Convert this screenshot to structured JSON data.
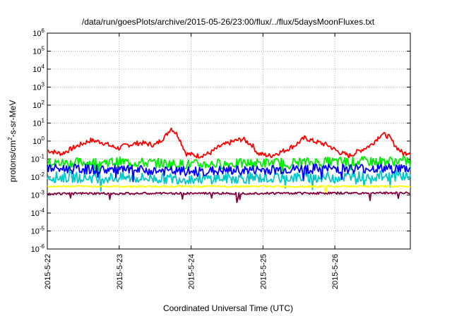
{
  "chart_data": {
    "type": "line",
    "title": "/data/run/goesPlots/archive/2015-05-26/23:00/flux/../flux/5daysMoonFluxes.txt",
    "xlabel": "Coordinated Universal Time (UTC)",
    "ylabel": {
      "pre": "protons/cm",
      "sup": "2",
      "post": "-s-sr-MeV"
    },
    "yscale": "log",
    "ylim": [
      1e-06,
      1000000.0
    ],
    "yticks": [
      {
        "exp": "-6"
      },
      {
        "exp": "-5"
      },
      {
        "exp": "-4"
      },
      {
        "exp": "-3"
      },
      {
        "exp": "-2"
      },
      {
        "exp": "-1"
      },
      {
        "exp": "0"
      },
      {
        "exp": "1"
      },
      {
        "exp": "2"
      },
      {
        "exp": "3"
      },
      {
        "exp": "4"
      },
      {
        "exp": "5"
      },
      {
        "exp": "6"
      }
    ],
    "tick_base": "10",
    "xlim_days": [
      0,
      5.05
    ],
    "xticks": [
      "2015-5-22",
      "2015-5-23",
      "2015-5-24",
      "2015-5-25",
      "2015-5-26"
    ],
    "grid": true,
    "series": [
      {
        "color": "#ff0000",
        "keyframes": [
          [
            0,
            0.3
          ],
          [
            0.2,
            0.2
          ],
          [
            0.4,
            0.5
          ],
          [
            0.6,
            1.1
          ],
          [
            0.75,
            0.9
          ],
          [
            0.9,
            0.5
          ],
          [
            1.0,
            0.4
          ],
          [
            1.1,
            0.6
          ],
          [
            1.3,
            0.8
          ],
          [
            1.5,
            0.6
          ],
          [
            1.65,
            2.0
          ],
          [
            1.72,
            5.5
          ],
          [
            1.82,
            2.0
          ],
          [
            1.93,
            0.2
          ],
          [
            2.1,
            0.15
          ],
          [
            2.25,
            0.2
          ],
          [
            2.4,
            0.5
          ],
          [
            2.6,
            1.0
          ],
          [
            2.72,
            1.3
          ],
          [
            2.85,
            0.6
          ],
          [
            2.93,
            0.2
          ],
          [
            3.1,
            0.15
          ],
          [
            3.3,
            0.3
          ],
          [
            3.45,
            0.6
          ],
          [
            3.58,
            1.5
          ],
          [
            3.7,
            1.0
          ],
          [
            3.9,
            0.6
          ],
          [
            4.05,
            0.25
          ],
          [
            4.2,
            0.15
          ],
          [
            4.35,
            0.3
          ],
          [
            4.5,
            0.6
          ],
          [
            4.65,
            2.5
          ],
          [
            4.75,
            1.8
          ],
          [
            4.85,
            0.5
          ],
          [
            4.95,
            0.2
          ],
          [
            5.05,
            0.25
          ]
        ],
        "jitter": 0.28,
        "dips": 0
      },
      {
        "color": "#00ee00",
        "keyframes": [
          [
            0,
            0.06
          ],
          [
            1,
            0.07
          ],
          [
            2,
            0.05
          ],
          [
            3,
            0.06
          ],
          [
            4,
            0.07
          ],
          [
            5.05,
            0.08
          ]
        ],
        "jitter": 0.55,
        "dips": 0.6
      },
      {
        "color": "#00c8c8",
        "keyframes": [
          [
            0,
            0.01
          ],
          [
            1,
            0.009
          ],
          [
            2,
            0.008
          ],
          [
            3,
            0.009
          ],
          [
            4,
            0.01
          ],
          [
            5.05,
            0.012
          ]
        ],
        "jitter": 0.6,
        "dips": 0.7
      },
      {
        "color": "#0000ff",
        "keyframes": [
          [
            0,
            0.03
          ],
          [
            1,
            0.025
          ],
          [
            2,
            0.02
          ],
          [
            3,
            0.025
          ],
          [
            4,
            0.03
          ],
          [
            5.05,
            0.03
          ]
        ],
        "jitter": 0.55,
        "dips": 0.7
      },
      {
        "color": "#ffff00",
        "keyframes": [
          [
            0,
            0.003
          ],
          [
            5.05,
            0.003
          ]
        ],
        "jitter": 0.1,
        "dips": 0.3
      },
      {
        "color": "#800040",
        "keyframes": [
          [
            0,
            0.0012
          ],
          [
            5.05,
            0.0013
          ]
        ],
        "jitter": 0.12,
        "dips": 0.5
      }
    ]
  }
}
